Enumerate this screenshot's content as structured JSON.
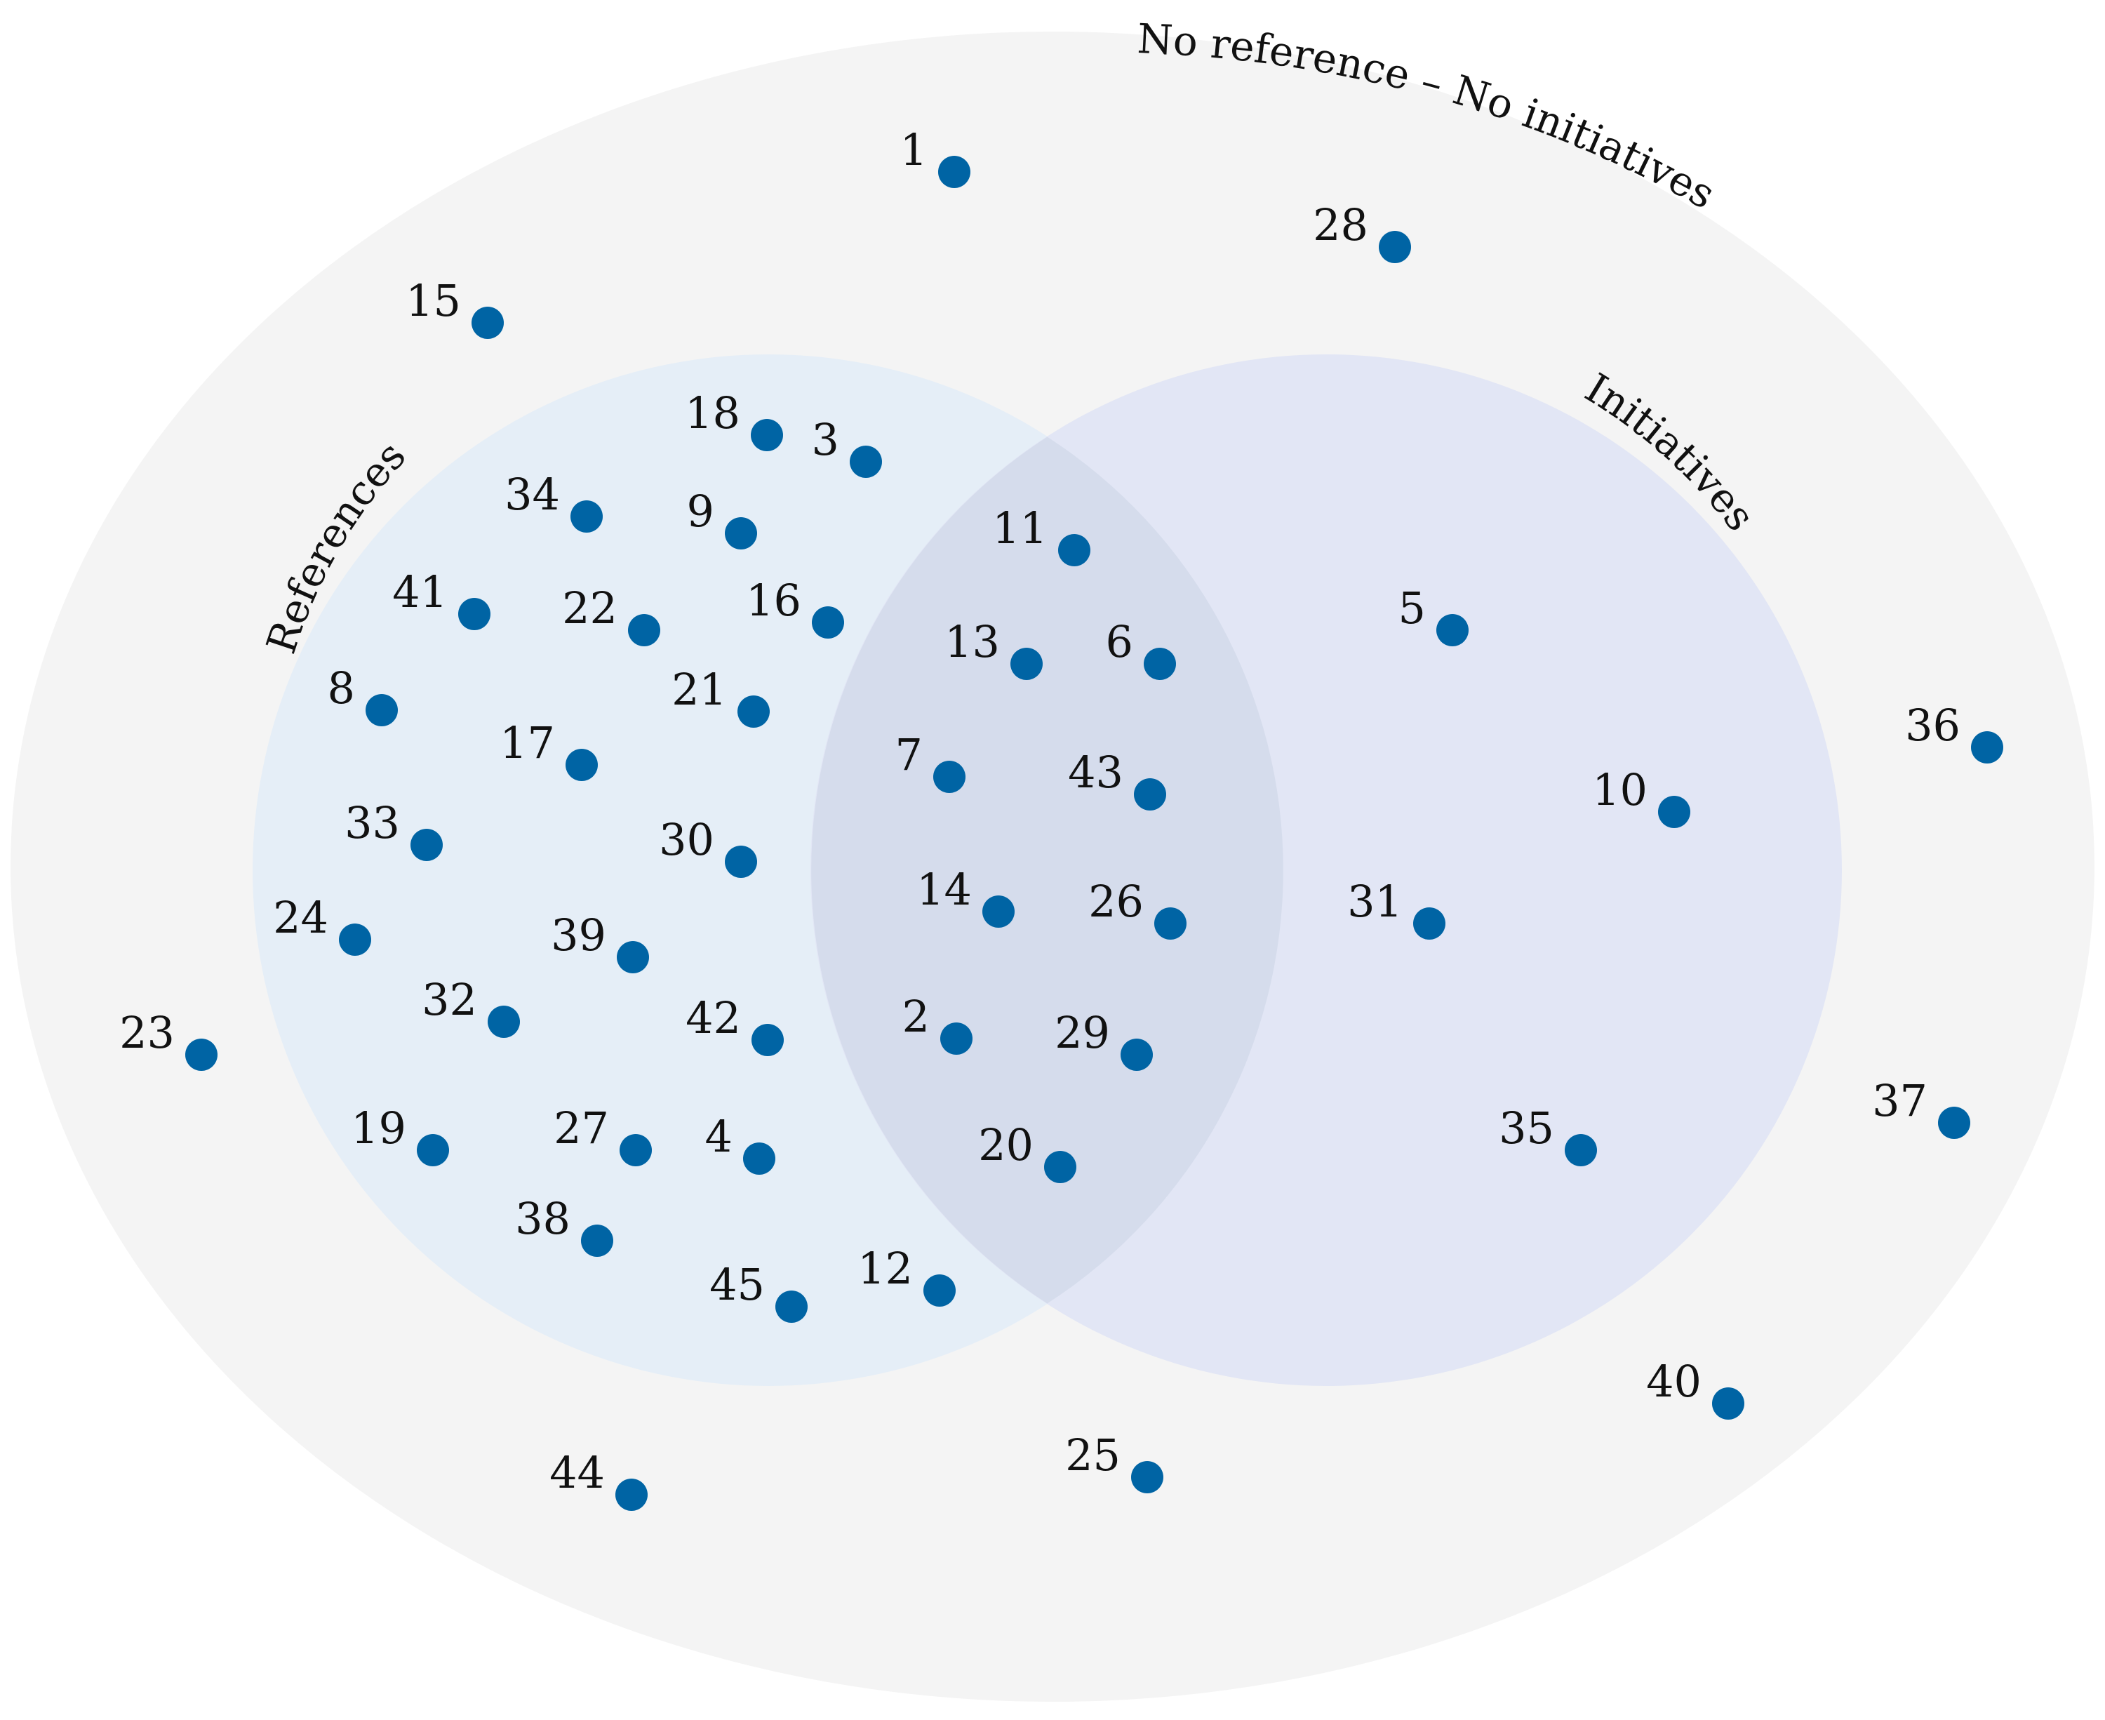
{
  "diagram": {
    "type": "venn",
    "colors": {
      "universe_fill": "#f4f4f4",
      "references_fill": "#e5eef7",
      "initiatives_fill": "#e2e6f5",
      "overlap_fill": "#d5dcec",
      "point_color": "#0064a4",
      "text_color": "#111111"
    },
    "regions": {
      "universe": {
        "label": "No reference – No initiatives"
      },
      "references": {
        "label": "References"
      },
      "initiatives": {
        "label": "Initiatives"
      }
    },
    "points": [
      {
        "id": "1",
        "label": "1",
        "region": "universe"
      },
      {
        "id": "28",
        "label": "28",
        "region": "universe"
      },
      {
        "id": "15",
        "label": "15",
        "region": "universe"
      },
      {
        "id": "23",
        "label": "23",
        "region": "universe"
      },
      {
        "id": "36",
        "label": "36",
        "region": "universe"
      },
      {
        "id": "37",
        "label": "37",
        "region": "universe"
      },
      {
        "id": "40",
        "label": "40",
        "region": "universe"
      },
      {
        "id": "44",
        "label": "44",
        "region": "universe"
      },
      {
        "id": "25",
        "label": "25",
        "region": "universe"
      },
      {
        "id": "18",
        "label": "18",
        "region": "references"
      },
      {
        "id": "3",
        "label": "3",
        "region": "references"
      },
      {
        "id": "34",
        "label": "34",
        "region": "references"
      },
      {
        "id": "9",
        "label": "9",
        "region": "references"
      },
      {
        "id": "41",
        "label": "41",
        "region": "references"
      },
      {
        "id": "22",
        "label": "22",
        "region": "references"
      },
      {
        "id": "16",
        "label": "16",
        "region": "references"
      },
      {
        "id": "8",
        "label": "8",
        "region": "references"
      },
      {
        "id": "21",
        "label": "21",
        "region": "references"
      },
      {
        "id": "17",
        "label": "17",
        "region": "references"
      },
      {
        "id": "33",
        "label": "33",
        "region": "references"
      },
      {
        "id": "30",
        "label": "30",
        "region": "references"
      },
      {
        "id": "24",
        "label": "24",
        "region": "references"
      },
      {
        "id": "39",
        "label": "39",
        "region": "references"
      },
      {
        "id": "32",
        "label": "32",
        "region": "references"
      },
      {
        "id": "42",
        "label": "42",
        "region": "references"
      },
      {
        "id": "19",
        "label": "19",
        "region": "references"
      },
      {
        "id": "27",
        "label": "27",
        "region": "references"
      },
      {
        "id": "4",
        "label": "4",
        "region": "references"
      },
      {
        "id": "38",
        "label": "38",
        "region": "references"
      },
      {
        "id": "45",
        "label": "45",
        "region": "references"
      },
      {
        "id": "12",
        "label": "12",
        "region": "references"
      },
      {
        "id": "11",
        "label": "11",
        "region": "both"
      },
      {
        "id": "13",
        "label": "13",
        "region": "both"
      },
      {
        "id": "6",
        "label": "6",
        "region": "both"
      },
      {
        "id": "7",
        "label": "7",
        "region": "both"
      },
      {
        "id": "43",
        "label": "43",
        "region": "both"
      },
      {
        "id": "14",
        "label": "14",
        "region": "both"
      },
      {
        "id": "26",
        "label": "26",
        "region": "both"
      },
      {
        "id": "2",
        "label": "2",
        "region": "both"
      },
      {
        "id": "29",
        "label": "29",
        "region": "both"
      },
      {
        "id": "20",
        "label": "20",
        "region": "both"
      },
      {
        "id": "5",
        "label": "5",
        "region": "initiatives"
      },
      {
        "id": "10",
        "label": "10",
        "region": "initiatives"
      },
      {
        "id": "31",
        "label": "31",
        "region": "initiatives"
      },
      {
        "id": "35",
        "label": "35",
        "region": "initiatives"
      }
    ]
  }
}
